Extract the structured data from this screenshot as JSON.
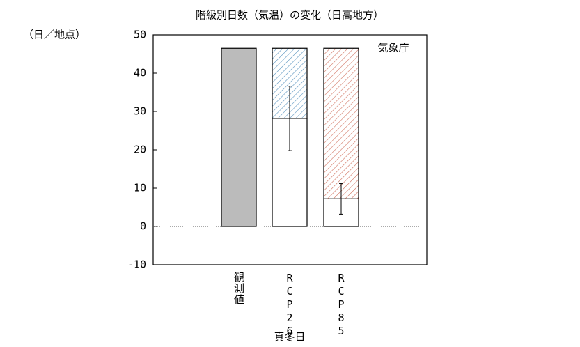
{
  "chart_data": {
    "type": "bar",
    "title": "階級別日数（気温）の変化（日高地方）",
    "y_label": "（日／地点）",
    "x_label": "真冬日",
    "annotation": "気象庁",
    "categories": [
      "観測値",
      "RCP26",
      "RCP85"
    ],
    "series": [
      {
        "color": "#bbbbbb",
        "values": [
          46.5,
          null,
          null
        ]
      },
      {
        "color": "#ffffff",
        "values": [
          null,
          28.2,
          7.2
        ],
        "errors": [
          null,
          8.4,
          4.0
        ]
      },
      {
        "colors": [
          null,
          "#5b95c0",
          "#d0705e"
        ],
        "hatch": true,
        "stacked": true,
        "values": [
          null,
          18.3,
          39.3
        ]
      }
    ],
    "ylim": [
      -10,
      50
    ],
    "yticks": [
      -10,
      0,
      10,
      20,
      30,
      40,
      50
    ],
    "zero_line": true
  }
}
